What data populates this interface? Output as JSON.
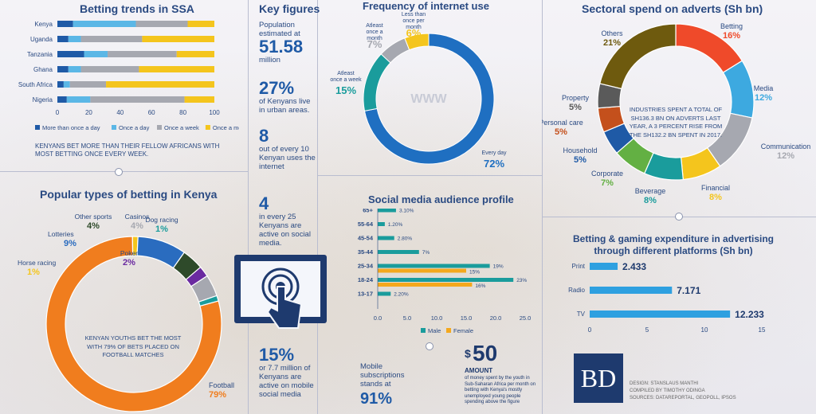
{
  "betting_trends": {
    "title": "Betting trends in SSA",
    "countries": [
      "Kenya",
      "Uganda",
      "Tanzania",
      "Ghana",
      "South Africa",
      "Nigeria"
    ],
    "series": [
      {
        "name": "More than once a day",
        "color": "#1f5aa6",
        "values": [
          10,
          7,
          17,
          7,
          4,
          6
        ]
      },
      {
        "name": "Once a day",
        "color": "#5bb7e6",
        "values": [
          40,
          8,
          15,
          8,
          4,
          15
        ]
      },
      {
        "name": "Once a week",
        "color": "#a6a8b0",
        "values": [
          33,
          39,
          44,
          37,
          23,
          60
        ]
      },
      {
        "name": "Once a month",
        "color": "#f4c51d",
        "values": [
          17,
          46,
          24,
          48,
          69,
          19
        ]
      }
    ],
    "ticks": [
      "0",
      "20",
      "40",
      "60",
      "80",
      "100"
    ],
    "note": "KENYANS BET MORE THAN THEIR FELLOW AFRICANS WITH MOST BETTING ONCE EVERY WEEK."
  },
  "key_figures": {
    "title": "Key figures",
    "items": [
      {
        "pre": "Population estimated at",
        "big": "51.58",
        "post": "million"
      },
      {
        "pre": "",
        "big": "27%",
        "post": "of Kenyans live in urban areas."
      },
      {
        "pre": "",
        "big": "8",
        "post": "out of every 10 Kenyan uses the internet"
      },
      {
        "pre": "",
        "big": "4",
        "post": "in every 25 Kenyans are active on social media."
      },
      {
        "pre": "",
        "big": "15%",
        "post": "or 7.7 million of Kenyans are active on mobile social media"
      }
    ]
  },
  "internet_freq": {
    "title": "Frequency of internet use",
    "slices": [
      {
        "label": "Every day",
        "value": 72,
        "color": "#1f6fc1"
      },
      {
        "label": "Atleast once a week",
        "value": 15,
        "color": "#1a9c9c"
      },
      {
        "label": "Atleast once a month",
        "value": 7,
        "color": "#a6a8b0"
      },
      {
        "label": "Less than once per month",
        "value": 6,
        "color": "#f4c51d"
      }
    ],
    "pct_labels": [
      "72%",
      "15%",
      "7%",
      "6%"
    ],
    "center_text": "WWW"
  },
  "social_media": {
    "title": "Social media audience profile",
    "groups": [
      "65+",
      "55-64",
      "45-54",
      "35-44",
      "25-34",
      "18-24",
      "13-17"
    ],
    "male": [
      3.1,
      1.2,
      2.8,
      7,
      19,
      23,
      2.2
    ],
    "female": [
      null,
      null,
      null,
      null,
      15,
      16,
      null
    ],
    "labels_male": [
      "3.10%",
      "1.20%",
      "2.80%",
      "7%",
      "19%",
      "23%",
      "2.20%"
    ],
    "labels_female": [
      "",
      "",
      "",
      "",
      "15%",
      "16%",
      ""
    ],
    "ticks": [
      "0.0",
      "5.0",
      "10.0",
      "15.0",
      "20.0",
      "25.0"
    ],
    "legend": [
      "Male",
      "Female"
    ],
    "colors": {
      "male": "#1a9c9c",
      "female": "#f4a81d"
    }
  },
  "sectoral": {
    "title": "Sectoral spend on adverts (Sh bn)",
    "center": "INDUSTRIES SPENT A TOTAL OF SH136.3 BN ON ADVERTS LAST YEAR, A 3 PERCENT RISE FROM THE SH132.2 BN SPENT IN 2017.",
    "slices": [
      {
        "label": "Betting",
        "value": 16,
        "pct": "16%",
        "color": "#ef4a2a"
      },
      {
        "label": "Media",
        "value": 12,
        "pct": "12%",
        "color": "#3da9e0"
      },
      {
        "label": "Communication",
        "value": 12,
        "pct": "12%",
        "color": "#a6a8b0"
      },
      {
        "label": "Financial",
        "value": 8,
        "pct": "8%",
        "color": "#f4c51d"
      },
      {
        "label": "Beverage",
        "value": 8,
        "pct": "8%",
        "color": "#1a9c9c"
      },
      {
        "label": "Corporate",
        "value": 7,
        "pct": "7%",
        "color": "#63b043"
      },
      {
        "label": "Household",
        "value": 5,
        "pct": "5%",
        "color": "#1f5aa6"
      },
      {
        "label": "Personal care",
        "value": 5,
        "pct": "5%",
        "color": "#c4501c"
      },
      {
        "label": "Property",
        "value": 5,
        "pct": "5%",
        "color": "#5a5a5a"
      },
      {
        "label": "Others",
        "value": 21,
        "pct": "21%",
        "color": "#6e5a0e"
      }
    ]
  },
  "betting_types": {
    "title": "Popular types of betting in Kenya",
    "slices": [
      {
        "label": "Football",
        "value": 79,
        "pct": "79%",
        "color": "#f07d1e"
      },
      {
        "label": "Horse racing",
        "value": 1,
        "pct": "1%",
        "color": "#f4c51d"
      },
      {
        "label": "Lotteries",
        "value": 9,
        "pct": "9%",
        "color": "#2a6cbf"
      },
      {
        "label": "Other sports",
        "value": 4,
        "pct": "4%",
        "color": "#2e4a2a"
      },
      {
        "label": "Poker",
        "value": 2,
        "pct": "2%",
        "color": "#6a2aa0"
      },
      {
        "label": "Casinos",
        "value": 4,
        "pct": "4%",
        "color": "#a6a8b0"
      },
      {
        "label": "Dog racing",
        "value": 1,
        "pct": "1%",
        "color": "#1a9c9c"
      }
    ],
    "center": "KENYAN YOUTHS BET THE MOST WITH 79% OF BETS PLACED ON FOOTBALL MATCHES"
  },
  "platforms": {
    "title": "Betting & gaming expenditure in advertising through different platforms (Sh bn)",
    "items": [
      {
        "label": "Print",
        "value": 2.433,
        "text": "2.433"
      },
      {
        "label": "Radio",
        "value": 7.171,
        "text": "7.171"
      },
      {
        "label": "TV",
        "value": 12.233,
        "text": "12.233"
      }
    ],
    "ticks": [
      "0",
      "5",
      "10",
      "15"
    ],
    "color": "#2ea0e0"
  },
  "mobile": {
    "pre": "Mobile subscriptions stands at",
    "big": "91%"
  },
  "amount": {
    "big": "50",
    "currency": "$",
    "label": "AMOUNT",
    "desc": "of money spent by the youth in Sub-Saharan Africa per month on betting with Kenya's mostly unemployed young people spending above the figure"
  },
  "logo": "BD",
  "credits": [
    "DESIGN: STANSLAUS MANTHI",
    "COMPILED BY TIMOTHY ODINGA",
    "SOURCES: DATAREPORTAL, GEOPOLL, IPSOS"
  ]
}
